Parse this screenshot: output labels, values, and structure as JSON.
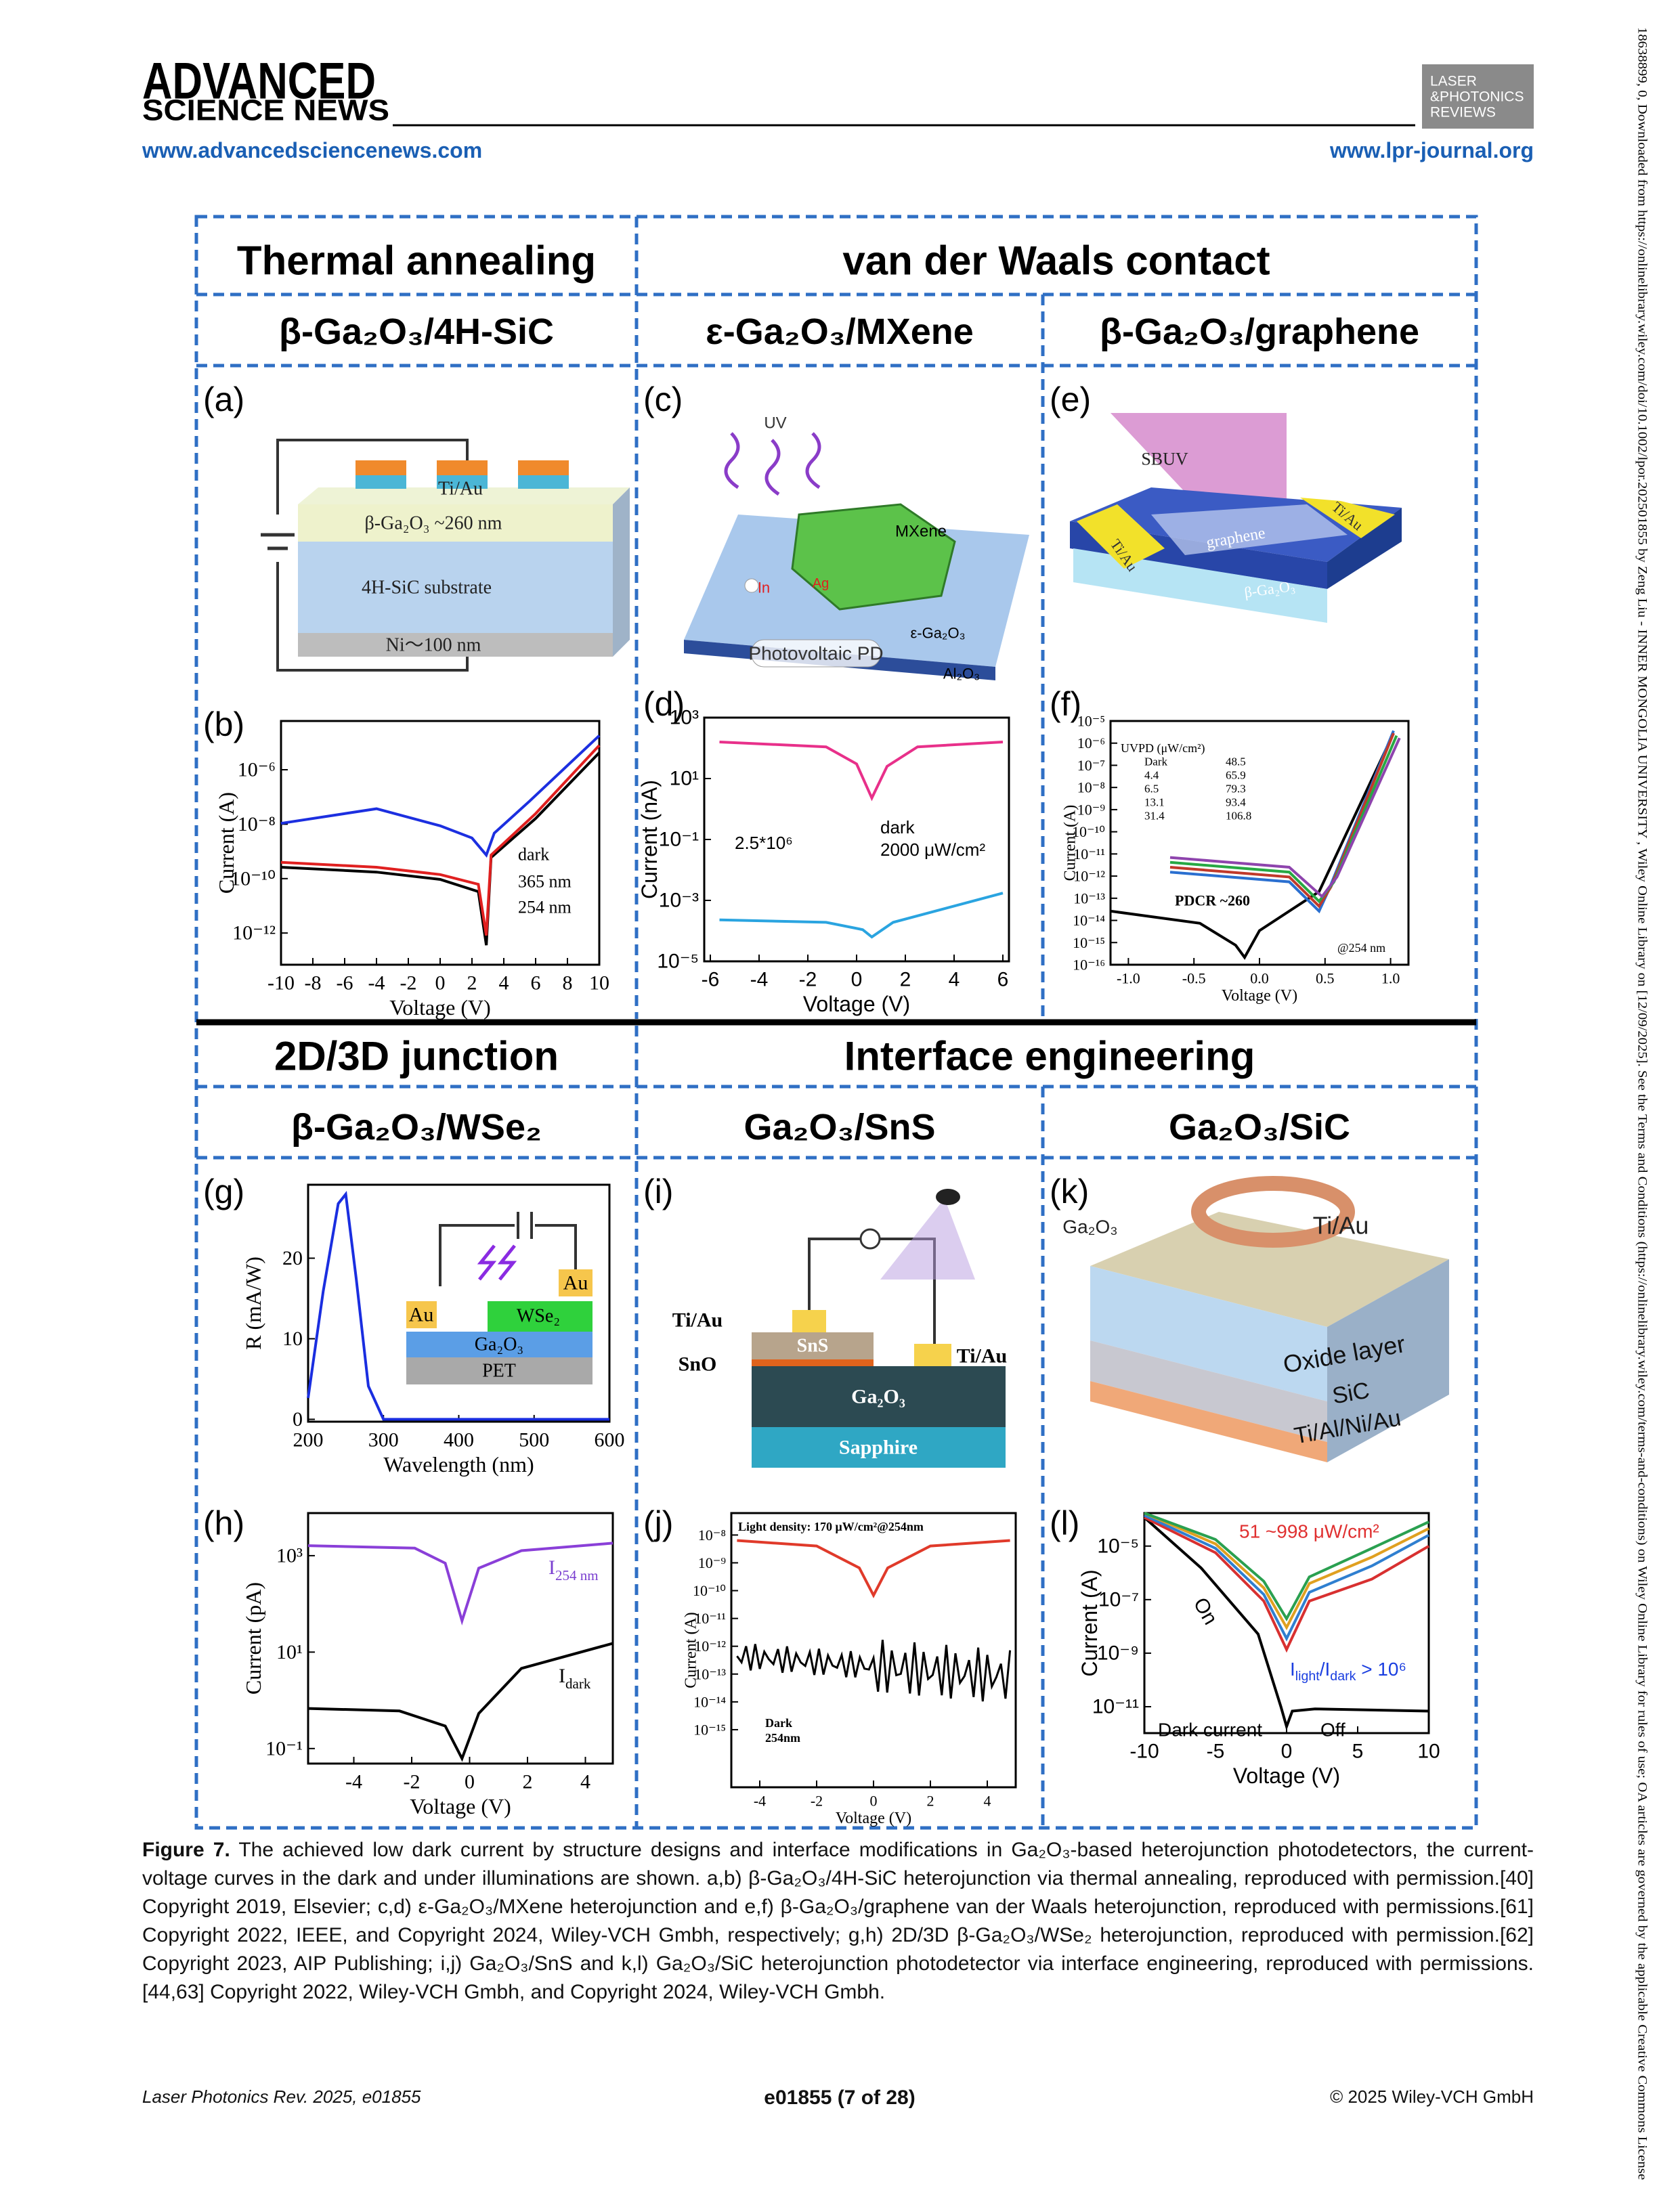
{
  "header": {
    "logo_top": "ADVANCED",
    "logo_bottom": "SCIENCE NEWS",
    "journal_logo": [
      "LASER",
      "&PHOTONICS",
      "REVIEWS"
    ],
    "left_url": "www.advancedsciencenews.com",
    "right_url": "www.lpr-journal.org"
  },
  "side_note": "18638899, 0, Downloaded from https://onlinelibrary.wiley.com/doi/10.1002/lpor.202501855 by Zeng Liu - INNER MONGOLIA UNIVERSITY , Wiley Online Library on [12/09/2025]. See the Terms and Conditions (https://onlinelibrary.wiley.com/terms-and-conditions) on Wiley Online Library for rules of use; OA articles are governed by the applicable Creative Commons License",
  "figure": {
    "sections": [
      "Thermal annealing",
      "van der Waals contact",
      "2D/3D junction",
      "Interface engineering"
    ],
    "subtitles": [
      "β-Ga₂O₃/4H-SiC",
      "ε-Ga₂O₃/MXene",
      "β-Ga₂O₃/graphene",
      "β-Ga₂O₃/WSe₂",
      "Ga₂O₃/SnS",
      "Ga₂O₃/SiC"
    ],
    "panels": [
      {
        "letter": "(a)",
        "labels": [
          "Ti/Au",
          "β-Ga₂O₃ ~260 nm",
          "4H-SiC substrate",
          "Ni～100 nm"
        ]
      },
      {
        "letter": "(b)",
        "xlabel": "Voltage (V)",
        "ylabel": "Current (A)",
        "xticks": [
          "-10",
          "-8",
          "-6",
          "-4",
          "-2",
          "0",
          "2",
          "4",
          "6",
          "8",
          "10"
        ],
        "yticks": [
          "10⁻⁶",
          "10⁻⁸",
          "10⁻¹⁰",
          "10⁻¹²"
        ],
        "labels": [
          "dark",
          "365 nm",
          "254 nm"
        ]
      },
      {
        "letter": "(c)",
        "labels": [
          "UV",
          "MXene",
          "In",
          "Ag",
          "ε-Ga₂O₃",
          "Photovoltaic PD",
          "Al₂O₃"
        ]
      },
      {
        "letter": "(d)",
        "xlabel": "Voltage (V)",
        "ylabel": "Current (nA)",
        "xticks": [
          "-6",
          "-4",
          "-2",
          "0",
          "2",
          "4",
          "6"
        ],
        "yticks": [
          "10³",
          "10¹",
          "10⁻¹",
          "10⁻³",
          "10⁻⁵"
        ],
        "labels": [
          "dark",
          "2000 μW/cm²",
          "2.5*10⁶"
        ]
      },
      {
        "letter": "(e)",
        "labels": [
          "SBUV",
          "graphene",
          "Ti/Au",
          "Ti/Au",
          "β-Ga₂O₃"
        ]
      },
      {
        "letter": "(f)",
        "xlabel": "Voltage (V)",
        "ylabel": "Current (A)",
        "xticks": [
          "-1.0",
          "-0.5",
          "0.0",
          "0.5",
          "1.0"
        ],
        "yticks": [
          "10⁻⁵",
          "10⁻⁶",
          "10⁻⁷",
          "10⁻⁸",
          "10⁻⁹",
          "10⁻¹⁰",
          "10⁻¹¹",
          "10⁻¹²",
          "10⁻¹³",
          "10⁻¹⁴",
          "10⁻¹⁵",
          "10⁻¹⁶"
        ],
        "labels": [
          "UVPD (μW/cm²)",
          "Dark",
          "4.4",
          "6.5",
          "13.1",
          "31.4",
          "48.5",
          "65.9",
          "79.3",
          "93.4",
          "106.8",
          "PDCR ~260",
          "@254 nm"
        ]
      },
      {
        "letter": "(g)",
        "xlabel": "Wavelength (nm)",
        "ylabel": "R (mA/W)",
        "xticks": [
          "200",
          "300",
          "400",
          "500",
          "600"
        ],
        "yticks": [
          "0",
          "10",
          "20"
        ],
        "labels": [
          "Au",
          "Au",
          "WSe₂",
          "Ga₂O₃",
          "PET"
        ]
      },
      {
        "letter": "(h)",
        "xlabel": "Voltage (V)",
        "ylabel": "Current (pA)",
        "xticks": [
          "-4",
          "-2",
          "0",
          "2",
          "4"
        ],
        "yticks": [
          "10³",
          "10¹",
          "10⁻¹"
        ],
        "labels": [
          [
            "I",
            "254 nm"
          ],
          [
            "I",
            "dark"
          ]
        ]
      },
      {
        "letter": "(i)",
        "labels": [
          "Ti/Au",
          "SnS",
          "SnO",
          "Ti/Au",
          "Ga₂O₃",
          "Sapphire"
        ]
      },
      {
        "letter": "(j)",
        "xlabel": "Voltage (V)",
        "ylabel": "Current (A)",
        "xticks": [
          "-4",
          "-2",
          "0",
          "2",
          "4"
        ],
        "yticks": [
          "10⁻⁸",
          "10⁻⁹",
          "10⁻¹⁰",
          "10⁻¹¹",
          "10⁻¹²",
          "10⁻¹³",
          "10⁻¹⁴",
          "10⁻¹⁵"
        ],
        "labels": [
          "Light density: 170 μW/cm²@254nm",
          "Dark",
          "254nm"
        ]
      },
      {
        "letter": "(k)",
        "labels": [
          "Ga₂O₃",
          "Ti/Au",
          "Oxide layer",
          "SiC",
          "Ti/Al/Ni/Au"
        ]
      },
      {
        "letter": "(l)",
        "xlabel": "Voltage (V)",
        "ylabel": "Current (A)",
        "xticks": [
          "-10",
          "-5",
          "0",
          "5",
          "10"
        ],
        "yticks": [
          "10⁻⁵",
          "10⁻⁷",
          "10⁻⁹",
          "10⁻¹¹"
        ],
        "labels": [
          "51 ~998 μW/cm²",
          "On",
          "Dark current",
          "Off",
          [
            "I",
            "light",
            "/I",
            "dark",
            " > 10⁶"
          ]
        ]
      }
    ]
  },
  "caption": {
    "label": "Figure 7.",
    "text": "The achieved low dark current by structure designs and interface modifications in Ga₂O₃-based heterojunction photodetectors, the current-voltage curves in the dark and under illuminations are shown. a,b) β-Ga₂O₃/4H-SiC heterojunction via thermal annealing, reproduced with permission.[40] Copyright 2019, Elsevier; c,d) ε-Ga₂O₃/MXene heterojunction and e,f) β-Ga₂O₃/graphene van der Waals heterojunction, reproduced with permissions.[61] Copyright 2022, IEEE, and Copyright 2024, Wiley-VCH Gmbh, respectively; g,h) 2D/3D β-Ga₂O₃/WSe₂ heterojunction, reproduced with permission.[62] Copyright 2023, AIP Publishing; i,j) Ga₂O₃/SnS and k,l) Ga₂O₃/SiC heterojunction photodetector via interface engineering, reproduced with permissions.[44,63] Copyright 2022, Wiley-VCH Gmbh, and Copyright 2024, Wiley-VCH Gmbh."
  },
  "footer": {
    "left": "Laser Photonics Rev. 2025, e01855",
    "center": "e01855 (7 of 28)",
    "right": "© 2025 Wiley-VCH GmbH"
  }
}
